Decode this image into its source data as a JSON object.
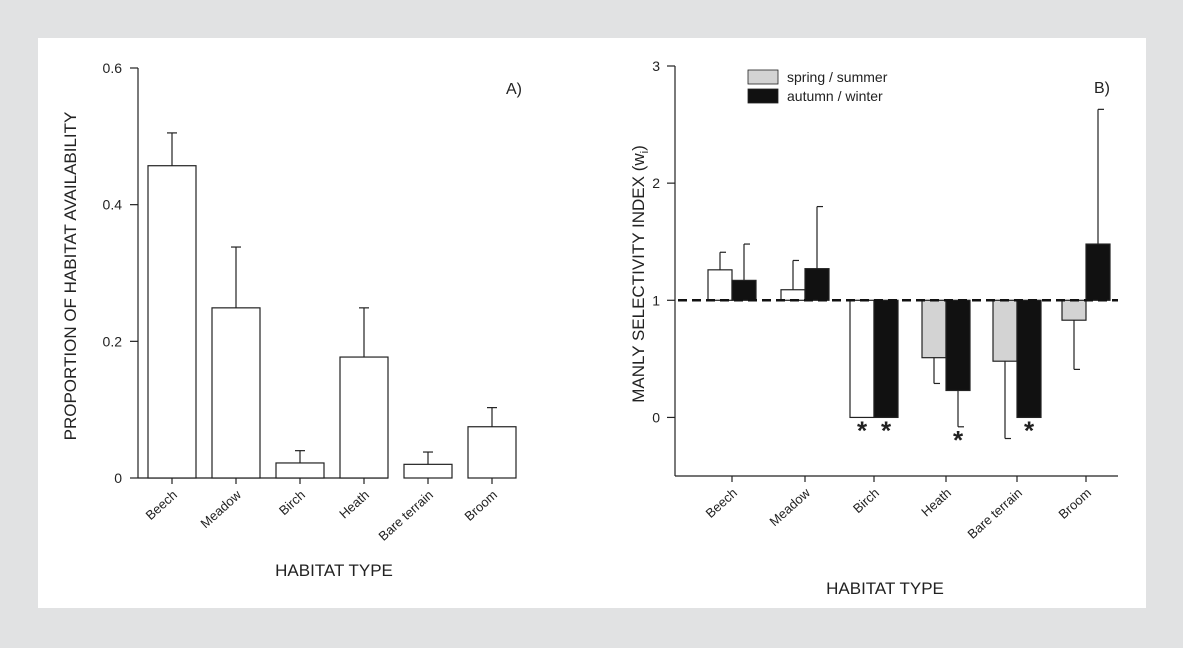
{
  "chart_data": [
    {
      "type": "bar",
      "panel_label": "A)",
      "xlabel": "HABITAT TYPE",
      "ylabel": "PROPORTION OF HABITAT AVAILABILITY",
      "ylim": [
        0,
        0.6
      ],
      "yticks": [
        {
          "value": 0,
          "label": "0"
        },
        {
          "value": 0.2,
          "label": "0.2"
        },
        {
          "value": 0.4,
          "label": "0.4"
        },
        {
          "value": 0.6,
          "label": "0.6"
        }
      ],
      "categories": [
        "Beech",
        "Meadow",
        "Birch",
        "Heath",
        "Bare terrain",
        "Broom"
      ],
      "values": [
        0.457,
        0.249,
        0.022,
        0.177,
        0.02,
        0.075
      ],
      "error_upper": [
        0.505,
        0.338,
        0.04,
        0.249,
        0.038,
        0.103
      ],
      "color": "#ffffff"
    },
    {
      "type": "bar",
      "panel_label": "B)",
      "xlabel": "HABITAT TYPE",
      "ylabel": "MANLY SELECTIVITY INDEX (w",
      "ylabel_subscript": "i",
      "ylabel_close": ")",
      "ylim": [
        -0.5,
        3
      ],
      "yticks": [
        {
          "value": 0,
          "label": "0"
        },
        {
          "value": 1,
          "label": "1"
        },
        {
          "value": 2,
          "label": "2"
        },
        {
          "value": 3,
          "label": "3"
        }
      ],
      "reference_line": 1,
      "legend_position": "top-left",
      "categories": [
        "Beech",
        "Meadow",
        "Birch",
        "Heath",
        "Bare terrain",
        "Broom"
      ],
      "series": [
        {
          "name": "spring / summer",
          "legend_color": "#d3d3d3",
          "colors": [
            "#ffffff",
            "#ffffff",
            "#ffffff",
            "#d3d3d3",
            "#d3d3d3",
            "#d3d3d3"
          ],
          "values": [
            1.26,
            1.09,
            0.0,
            0.51,
            0.48,
            0.83
          ],
          "error_end": [
            1.41,
            1.34,
            0.0,
            0.29,
            -0.18,
            0.41
          ],
          "significant": [
            false,
            false,
            true,
            false,
            false,
            false
          ]
        },
        {
          "name": "autumn / winter",
          "legend_color": "#111111",
          "colors": [
            "#111111",
            "#111111",
            "#111111",
            "#111111",
            "#111111",
            "#111111"
          ],
          "values": [
            1.17,
            1.27,
            0.0,
            0.23,
            0.0,
            1.48
          ],
          "error_end": [
            1.48,
            1.8,
            0.0,
            -0.08,
            0.0,
            2.63
          ],
          "significant": [
            false,
            false,
            true,
            true,
            true,
            false
          ]
        }
      ],
      "significance_marker": "*"
    }
  ]
}
